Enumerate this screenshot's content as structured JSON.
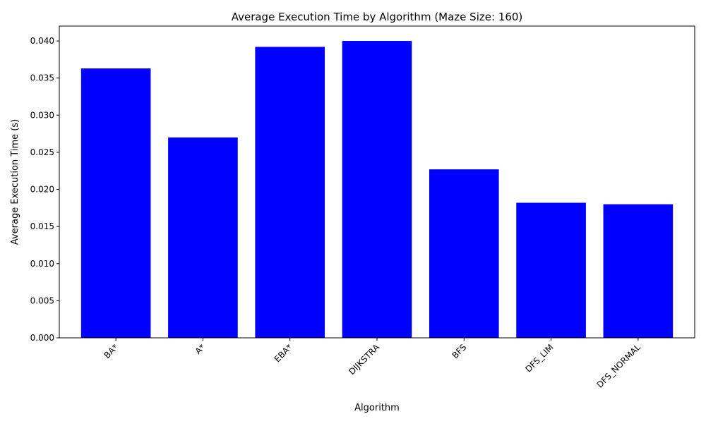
{
  "chart_data": {
    "type": "bar",
    "title": "Average Execution Time by Algorithm (Maze Size: 160)",
    "xlabel": "Algorithm",
    "ylabel": "Average Execution Time (s)",
    "categories": [
      "BA*",
      "A*",
      "EBA*",
      "DIJKSTRA",
      "BFS",
      "DFS_LIM",
      "DFS_NORMAL"
    ],
    "values": [
      0.0363,
      0.027,
      0.0392,
      0.04,
      0.0227,
      0.0182,
      0.018
    ],
    "ylim": [
      0,
      0.042
    ],
    "yticks": [
      "0.000",
      "0.005",
      "0.010",
      "0.015",
      "0.020",
      "0.025",
      "0.030",
      "0.035",
      "0.040"
    ],
    "bar_color": "#0000ff",
    "grid": false,
    "x_tick_rotation_deg": 45
  }
}
